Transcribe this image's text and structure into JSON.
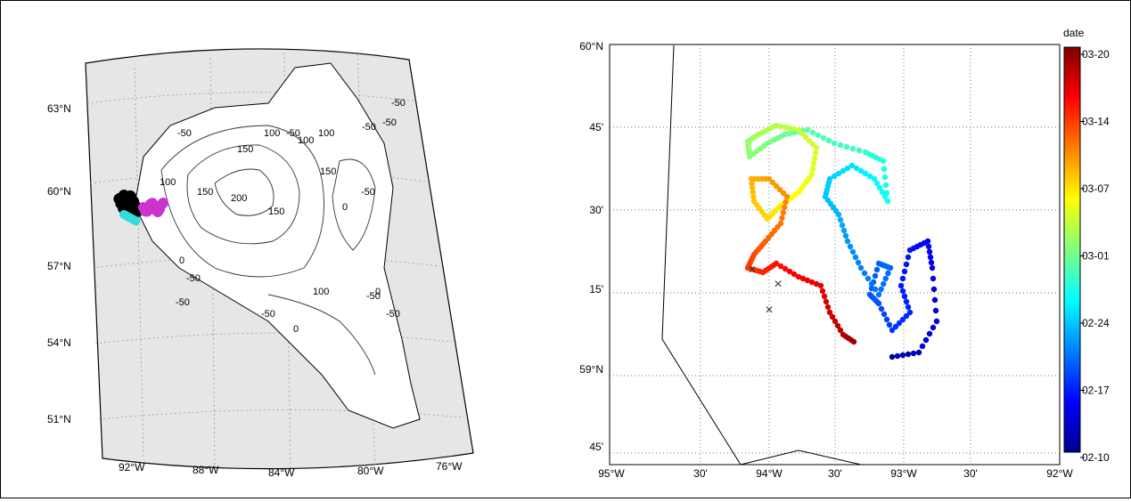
{
  "left_map": {
    "lat_labels": [
      "63°N",
      "60°N",
      "57°N",
      "54°N",
      "51°N"
    ],
    "lon_labels": [
      "92°W",
      "88°W",
      "84°W",
      "80°W",
      "76°W"
    ],
    "contour_labels": [
      "-50",
      "100",
      "-50",
      "150",
      "100",
      "-50",
      "100",
      "150",
      "200",
      "150",
      "100",
      "150",
      "-50",
      "-50",
      "-50",
      "-50",
      "0",
      "100",
      "-50",
      "-50",
      "0",
      "-50",
      "0",
      "0",
      "-50"
    ],
    "track_colors": [
      "#000000",
      "#cc33cc",
      "#33dddd"
    ]
  },
  "right_map": {
    "lat_labels": [
      "60°N",
      "45'",
      "30'",
      "15'",
      "59°N",
      "45'"
    ],
    "lon_labels": [
      "95°W",
      "30'",
      "94°W",
      "30'",
      "93°W",
      "30'",
      "92°W"
    ],
    "colorbar": {
      "title": "date",
      "ticks": [
        "03-20",
        "03-14",
        "03-07",
        "03-01",
        "02-24",
        "02-17",
        "02-10"
      ],
      "colormap": "jet"
    },
    "marker_symbol": "×"
  }
}
